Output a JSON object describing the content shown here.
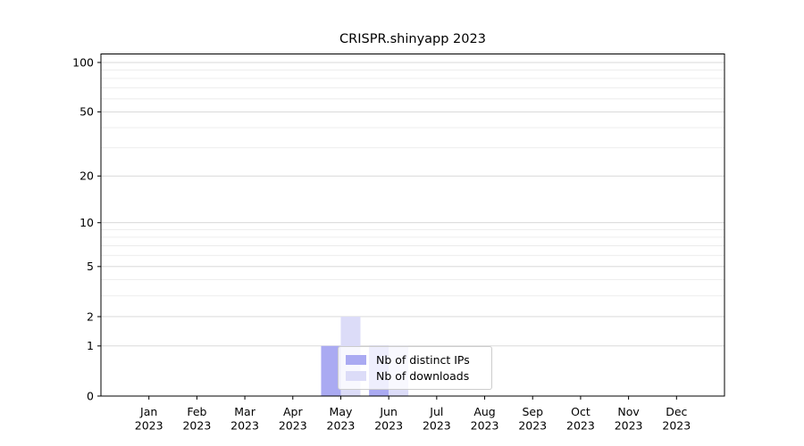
{
  "chart_data": {
    "type": "bar",
    "title": "CRISPR.shinyapp 2023",
    "year": "2023",
    "months": [
      "Jan",
      "Feb",
      "Mar",
      "Apr",
      "May",
      "Jun",
      "Jul",
      "Aug",
      "Sep",
      "Oct",
      "Nov",
      "Dec"
    ],
    "series": [
      {
        "name": "Nb of distinct IPs",
        "color": "#aaaaf2",
        "values": [
          0,
          0,
          0,
          0,
          1,
          1,
          0,
          0,
          0,
          0,
          0,
          0
        ]
      },
      {
        "name": "Nb of downloads",
        "color": "#dcdcf8",
        "values": [
          0,
          0,
          0,
          0,
          2,
          1,
          0,
          0,
          0,
          0,
          0,
          0
        ]
      }
    ],
    "xlabel": "",
    "ylabel": "",
    "yscale": "log1p",
    "ylim": [
      0,
      112.6
    ],
    "yticks": [
      0,
      1,
      2,
      5,
      10,
      20,
      50,
      100
    ],
    "minor_gridlines": [
      3,
      4,
      6,
      7,
      8,
      9,
      30,
      40,
      60,
      70,
      80,
      90
    ],
    "grid": "horizontal",
    "legend_position": "lower center inside plot"
  },
  "colors": {
    "major_grid": "#d4d4d4",
    "minor_grid": "#ebebeb",
    "axis": "#000000",
    "background": "#ffffff"
  }
}
